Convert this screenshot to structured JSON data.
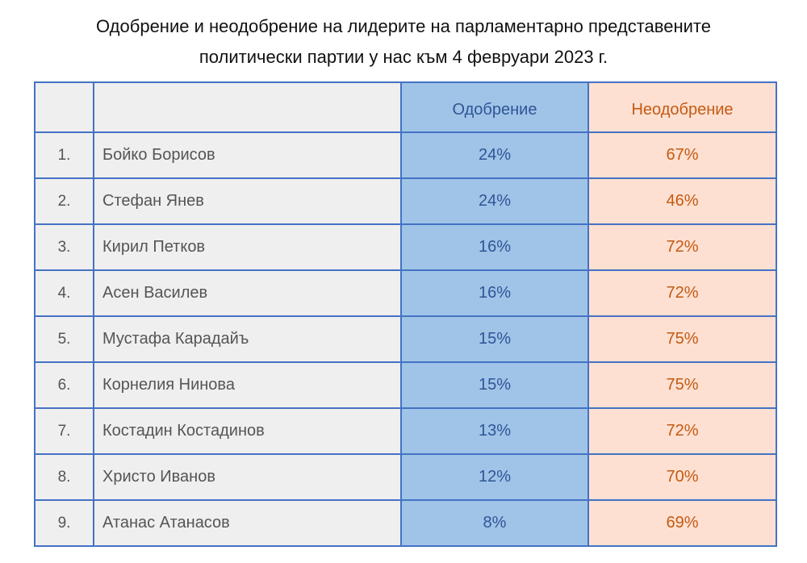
{
  "title": {
    "line1": "Одобрение и неодобрение на лидерите на парламентарно представените",
    "line2": "политически партии у нас към 4 февруари 2023 г."
  },
  "colors": {
    "border": "#4472c4",
    "approval_fill": "#9fc4e7",
    "approval_text": "#2f5597",
    "disapproval_fill": "#fde0d2",
    "disapproval_text": "#c55a11",
    "name_fill": "#efefef"
  },
  "chart_data": {
    "type": "table",
    "title": "Одобрение и неодобрение на лидерите на парламентарно представените политически партии у нас към 4 февруари 2023 г.",
    "columns": [
      "",
      "",
      "Одобрение",
      "Неодобрение"
    ],
    "rows": [
      {
        "rank": "1.",
        "name": "Бойко Борисов",
        "approval": "24%",
        "disapproval": "67%"
      },
      {
        "rank": "2.",
        "name": "Стефан Янев",
        "approval": "24%",
        "disapproval": "46%"
      },
      {
        "rank": "3.",
        "name": "Кирил Петков",
        "approval": "16%",
        "disapproval": "72%"
      },
      {
        "rank": "4.",
        "name": "Асен Василев",
        "approval": "16%",
        "disapproval": "72%"
      },
      {
        "rank": "5.",
        "name": "Мустафа Карадайъ",
        "approval": "15%",
        "disapproval": "75%"
      },
      {
        "rank": "6.",
        "name": "Корнелия Нинова",
        "approval": "15%",
        "disapproval": "75%"
      },
      {
        "rank": "7.",
        "name": "Костадин Костадинов",
        "approval": "13%",
        "disapproval": "72%"
      },
      {
        "rank": "8.",
        "name": "Христо Иванов",
        "approval": "12%",
        "disapproval": "70%"
      },
      {
        "rank": "9.",
        "name": "Атанас Атанасов",
        "approval": "8%",
        "disapproval": "69%"
      }
    ]
  }
}
